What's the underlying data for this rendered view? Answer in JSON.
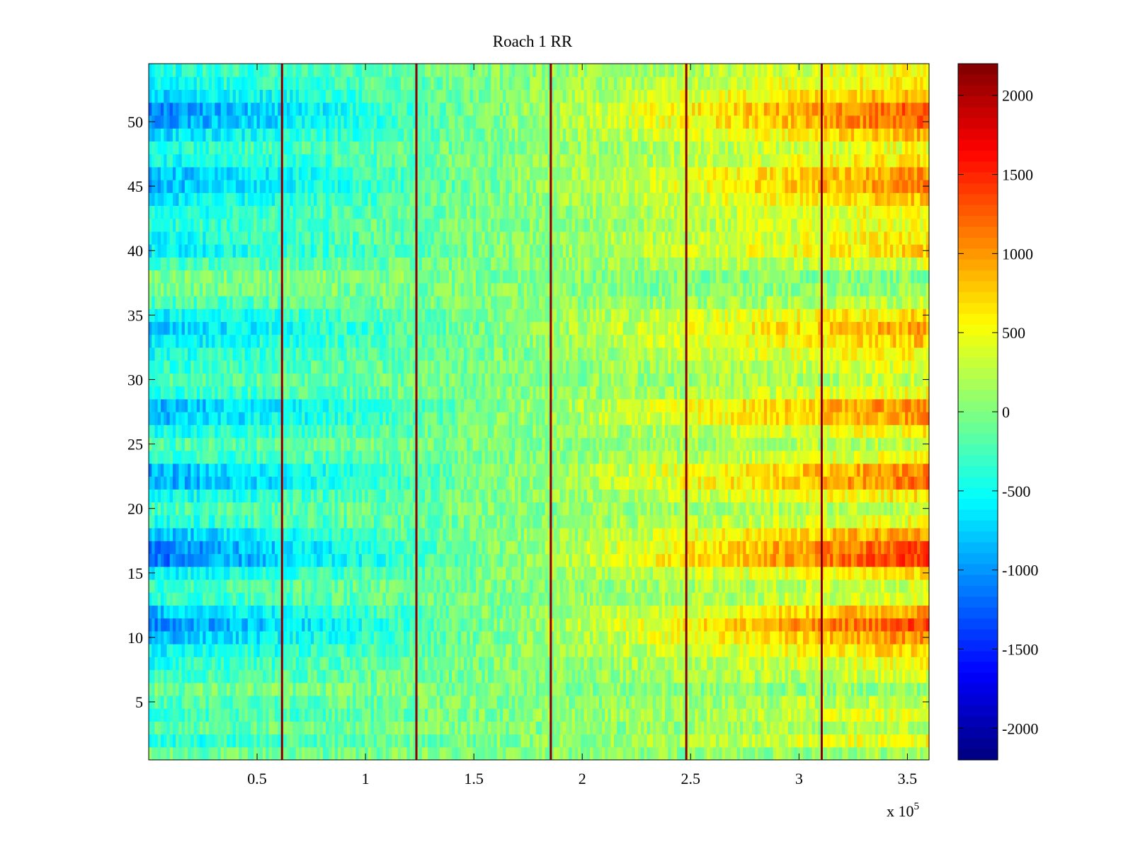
{
  "chart_data": {
    "type": "heatmap",
    "title": "Roach 1 RR",
    "xlabel": "",
    "ylabel": "",
    "x_exponent_label": "x 10",
    "x_exponent": "5",
    "xlim": [
      0,
      3.6
    ],
    "ylim": [
      0.5,
      54.5
    ],
    "x_ticks": [
      0.5,
      1,
      1.5,
      2,
      2.5,
      3,
      3.5
    ],
    "x_tick_labels": [
      "0.5",
      "1",
      "1.5",
      "2",
      "2.5",
      "3",
      "3.5"
    ],
    "y_ticks": [
      5,
      10,
      15,
      20,
      25,
      30,
      35,
      40,
      45,
      50
    ],
    "y_tick_labels": [
      "5",
      "10",
      "15",
      "20",
      "25",
      "30",
      "35",
      "40",
      "45",
      "50"
    ],
    "rows": 54,
    "colormap": "jet",
    "clim": [
      -2200,
      2200
    ],
    "colorbar_ticks": [
      2000,
      1500,
      1000,
      500,
      0,
      -500,
      -1000,
      -1500,
      -2000
    ],
    "colorbar_tick_labels": [
      "2000",
      "1500",
      "1000",
      "500",
      "0",
      "-500",
      "-1000",
      "-1500",
      "-2000"
    ],
    "vertical_lines_x": [
      0.615,
      1.235,
      1.855,
      2.48,
      3.105
    ],
    "trend_start_value": -700,
    "trend_end_value": 850,
    "row_amplitude": [
      -0.2,
      0.3,
      -0.1,
      0.2,
      0.0,
      -0.3,
      0.1,
      0.3,
      0.6,
      1.1,
      1.5,
      1.0,
      0.2,
      0.1,
      0.6,
      1.6,
      1.5,
      1.0,
      0.3,
      0.0,
      0.5,
      1.2,
      1.1,
      0.3,
      0.0,
      0.4,
      1.0,
      1.1,
      0.3,
      0.0,
      0.2,
      0.4,
      0.7,
      0.9,
      0.6,
      0.0,
      -0.3,
      -0.4,
      0.1,
      0.6,
      0.5,
      0.3,
      0.4,
      0.7,
      1.1,
      1.0,
      0.5,
      0.3,
      0.8,
      1.3,
      1.4,
      0.9,
      0.5,
      0.3
    ]
  }
}
